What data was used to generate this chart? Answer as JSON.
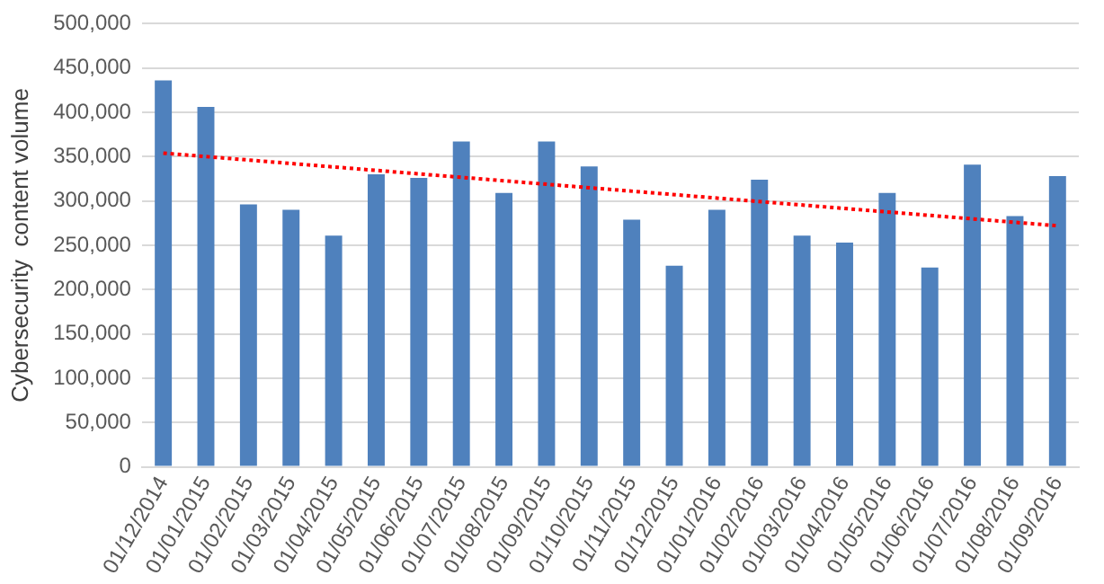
{
  "chart_data": {
    "type": "bar",
    "ylabel": "Cybersecurity  content volume",
    "categories": [
      "01/12/2014",
      "01/01/2015",
      "01/02/2015",
      "01/03/2015",
      "01/04/2015",
      "01/05/2015",
      "01/06/2015",
      "01/07/2015",
      "01/08/2015",
      "01/09/2015",
      "01/10/2015",
      "01/11/2015",
      "01/12/2015",
      "01/01/2016",
      "01/02/2016",
      "01/03/2016",
      "01/04/2016",
      "01/05/2016",
      "01/06/2016",
      "01/07/2016",
      "01/08/2016",
      "01/09/2016"
    ],
    "series": [
      {
        "color": "#4f81bd",
        "values": [
          436000,
          406000,
          296000,
          290000,
          261000,
          330000,
          326000,
          367000,
          309000,
          367000,
          339000,
          279000,
          227000,
          290000,
          324000,
          261000,
          253000,
          309000,
          225000,
          341000,
          283000,
          328000
        ]
      },
      {
        "type": "line",
        "color": "#ff0000",
        "line_style": "dotted",
        "marker": "none",
        "values": [
          354000,
          null,
          null,
          null,
          null,
          null,
          null,
          null,
          null,
          null,
          null,
          null,
          null,
          null,
          null,
          null,
          null,
          null,
          null,
          null,
          null,
          272000
        ]
      }
    ],
    "ylim": [
      0,
      500000
    ],
    "yticks": [
      0,
      {
        "value": 50000,
        "label": "50,000"
      },
      {
        "value": 100000,
        "label": "100,000"
      },
      {
        "value": 150000,
        "label": "150,000"
      },
      {
        "value": 200000,
        "label": "200,000"
      },
      {
        "value": 250000,
        "label": "250,000"
      },
      {
        "value": 300000,
        "label": "300,000"
      },
      {
        "value": 350000,
        "label": "350,000"
      },
      {
        "value": 400000,
        "label": "400,000"
      },
      {
        "value": 450000,
        "label": "450,000"
      },
      {
        "value": 500000,
        "label": "500,000"
      }
    ],
    "grid": "y",
    "legend": false
  }
}
